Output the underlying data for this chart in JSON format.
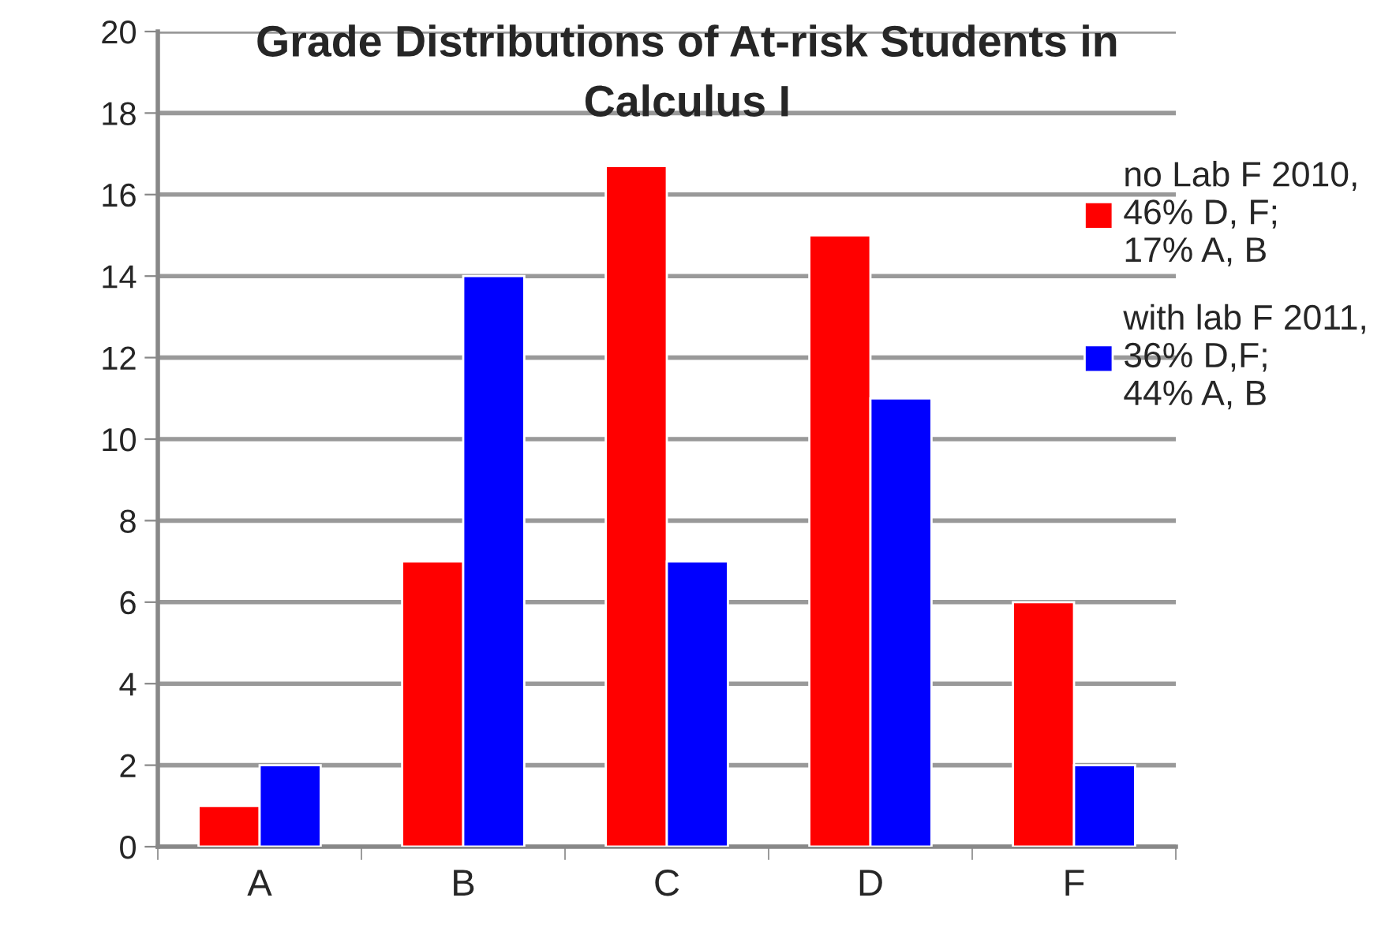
{
  "chart_data": {
    "type": "bar",
    "title": "Grade Distributions of At-risk Students in\nCalculus I",
    "categories": [
      "A",
      "B",
      "C",
      "D",
      "F"
    ],
    "series": [
      {
        "name": "no Lab F 2010,\n46% D, F;\n17% A, B",
        "color": "#ff0000",
        "values": [
          1,
          7,
          16.7,
          15,
          6
        ]
      },
      {
        "name": "with lab F 2011,\n36% D,F;\n44% A, B",
        "color": "#0000ff",
        "values": [
          2,
          14,
          7,
          11,
          2
        ]
      }
    ],
    "ylim": [
      0,
      20
    ],
    "yticks": [
      0,
      2,
      4,
      6,
      8,
      10,
      12,
      14,
      16,
      18,
      20
    ],
    "grid": "y",
    "legend": "top right"
  }
}
